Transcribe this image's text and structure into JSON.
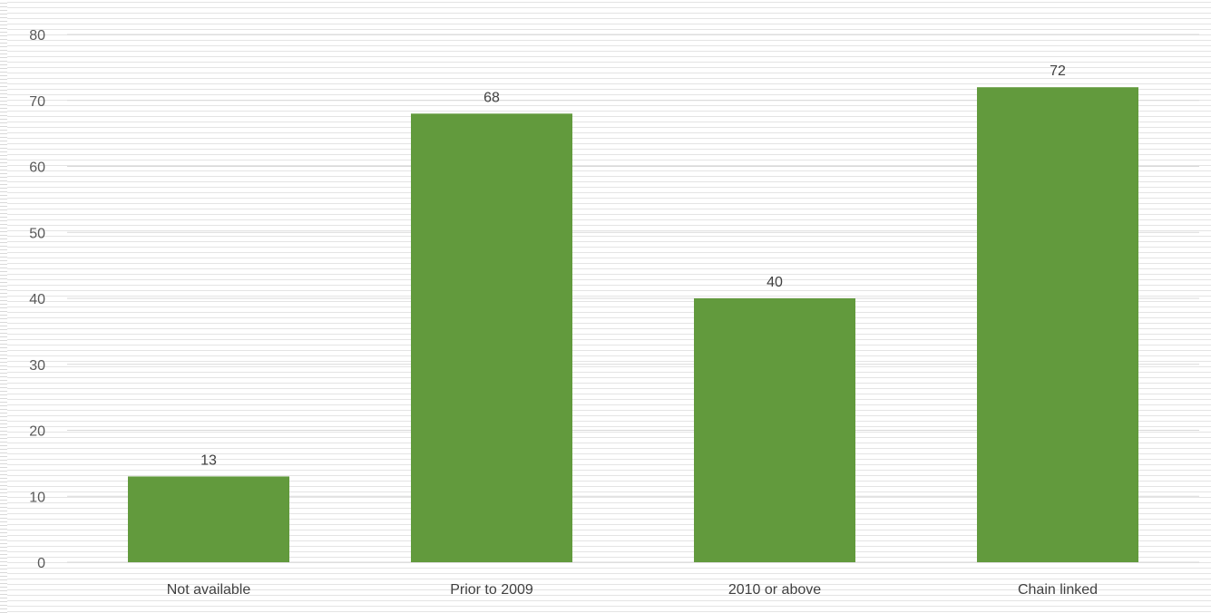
{
  "chart_data": {
    "type": "bar",
    "title": "",
    "xlabel": "",
    "ylabel": "",
    "categories": [
      "Not available",
      "Prior to 2009",
      "2010 or above",
      "Chain linked"
    ],
    "values": [
      13,
      68,
      40,
      72
    ],
    "data_labels": [
      "13",
      "68",
      "40",
      "72"
    ],
    "ylim": [
      0,
      80
    ],
    "yticks": [
      "0",
      "10",
      "20",
      "30",
      "40",
      "50",
      "60",
      "70",
      "80"
    ],
    "grid": true,
    "legend": "none",
    "bar_color": "#629a3d",
    "gridline_color": "#d9d9d9"
  }
}
